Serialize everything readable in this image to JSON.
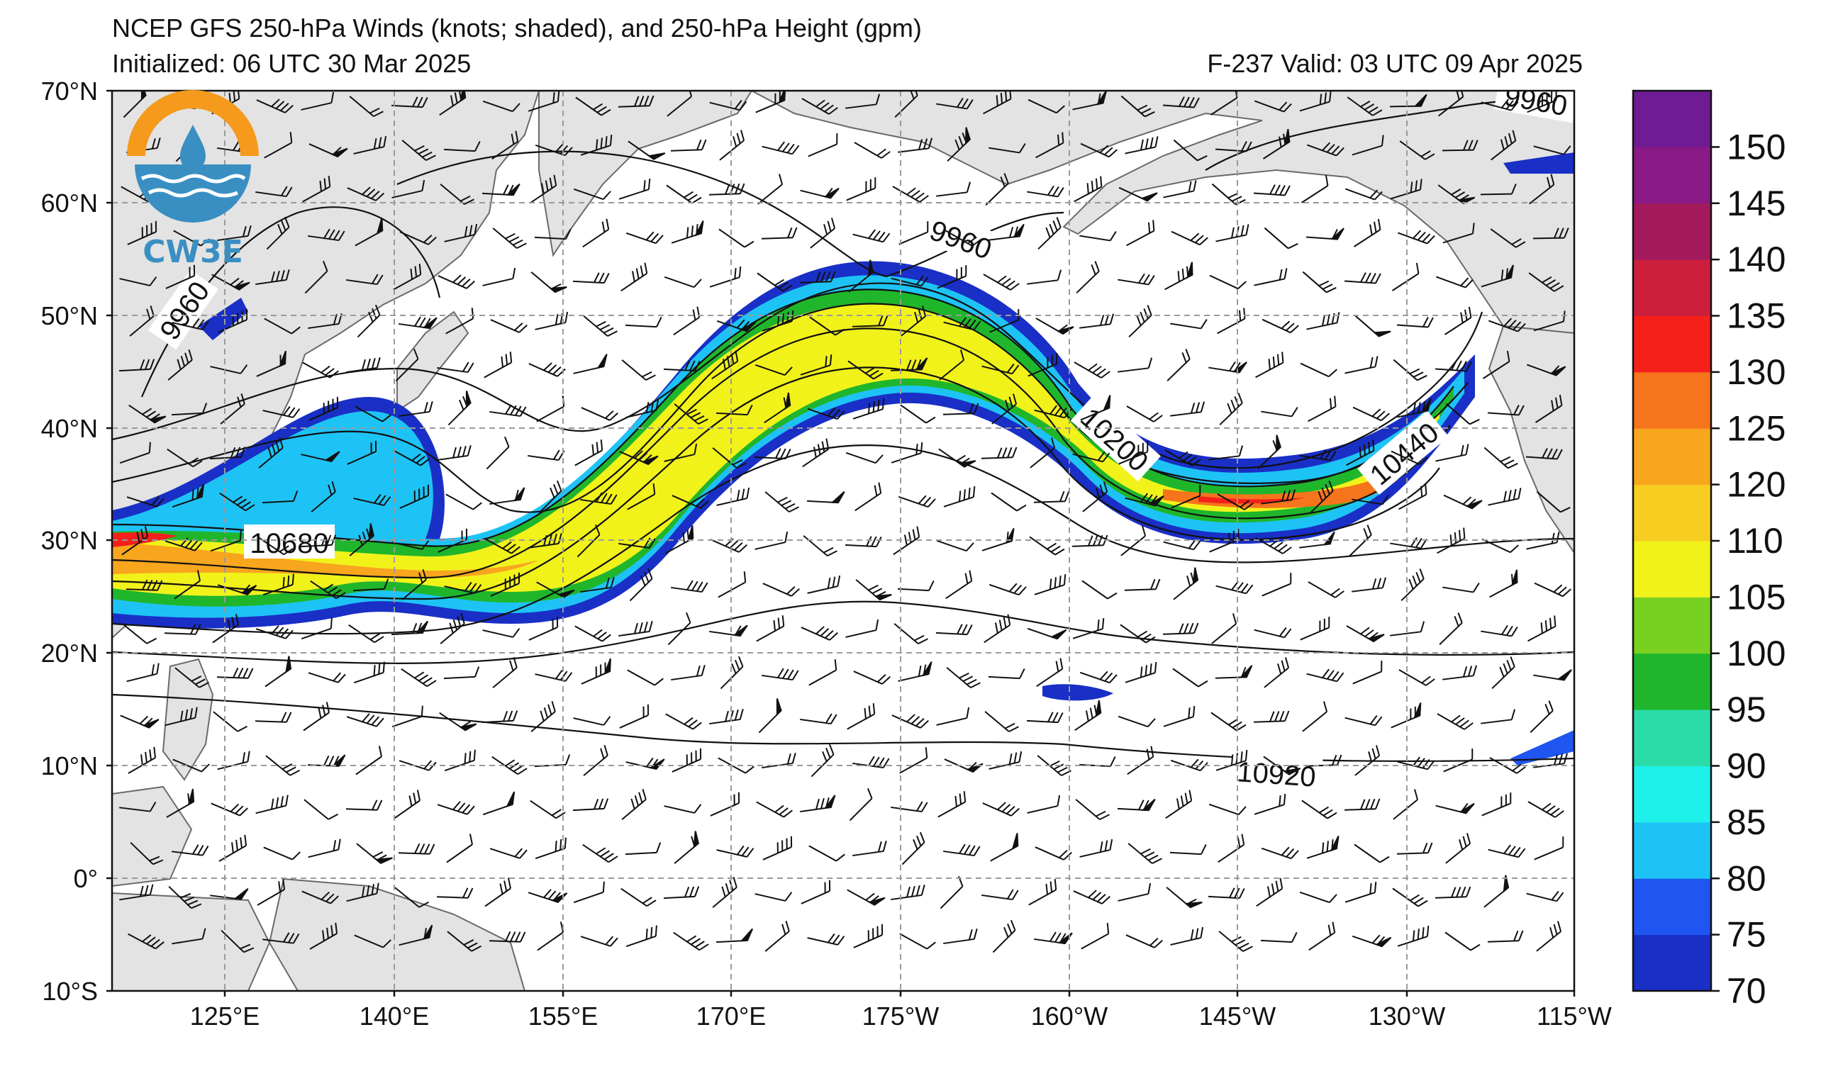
{
  "header": {
    "title": "NCEP GFS 250-hPa Winds (knots; shaded), and 250-hPa Height (gpm)",
    "initialized": "Initialized: 06 UTC 30 Mar 2025",
    "valid": "F-237  Valid: 03 UTC 09 Apr 2025"
  },
  "logo": {
    "text": "CW3E"
  },
  "map": {
    "lat_labels": [
      "70°N",
      "60°N",
      "50°N",
      "40°N",
      "30°N",
      "20°N",
      "10°N",
      "0°",
      "10°S"
    ],
    "lon_labels": [
      "125°E",
      "140°E",
      "155°E",
      "170°E",
      "175°W",
      "160°W",
      "145°W",
      "130°W",
      "115°W"
    ],
    "contour_labels": [
      "9960",
      "9960",
      "9960",
      "10200",
      "10440",
      "10680",
      "10920"
    ],
    "land_color": "#e3e3e3",
    "grid_color": "#9a9a9a"
  },
  "colorbar": {
    "ticks": [
      "150",
      "145",
      "140",
      "135",
      "130",
      "125",
      "120",
      "110",
      "105",
      "100",
      "95",
      "90",
      "85",
      "80",
      "75",
      "70"
    ],
    "colors": [
      "#1a2fc6",
      "#1f55f0",
      "#1ec3f5",
      "#1ef0ea",
      "#2bdca8",
      "#1fb62c",
      "#78d021",
      "#f2f21b",
      "#f8cd22",
      "#f8a61e",
      "#f6741c",
      "#f5201a",
      "#cc1f3c",
      "#a31a5c",
      "#8a1a86",
      "#6e1b94"
    ]
  }
}
